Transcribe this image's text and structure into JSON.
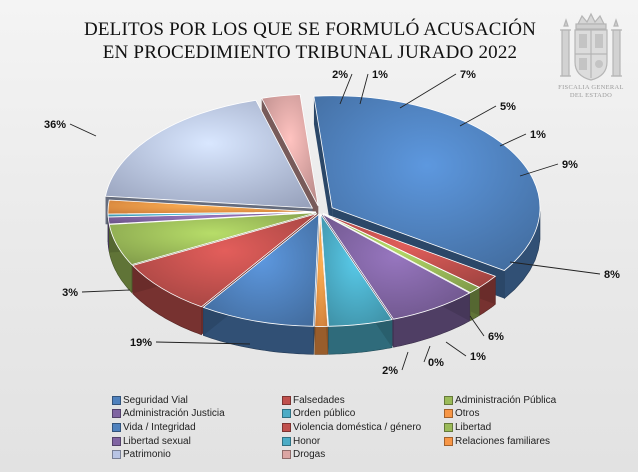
{
  "title": {
    "line1": "DELITOS POR LOS QUE SE FORMULÓ ACUSACIÓN",
    "line2": "EN PROCEDIMIENTO TRIBUNAL JURADO 2022"
  },
  "emblem": {
    "icon": "coat-of-arms-icon",
    "text_line1": "FISCALIA GENERAL",
    "text_line2": "DEL ESTADO"
  },
  "chart_data": {
    "type": "pie",
    "title": "DELITOS POR LOS QUE SE FORMULÓ ACUSACIÓN EN PROCEDIMIENTO TRIBUNAL JURADO 2022",
    "style": "3d-exploded",
    "legend_position": "bottom",
    "slices": [
      {
        "label": "Seguridad Vial",
        "value": 36,
        "display": "36%",
        "color": "#4f81bd"
      },
      {
        "label": "Falsedades",
        "value": 2,
        "display": "2%",
        "color": "#c0504d"
      },
      {
        "label": "Administración Pública",
        "value": 1,
        "display": "1%",
        "color": "#9bbb59"
      },
      {
        "label": "Administración Justicia",
        "value": 7,
        "display": "7%",
        "color": "#8064a2"
      },
      {
        "label": "Orden público",
        "value": 5,
        "display": "5%",
        "color": "#4bacc6"
      },
      {
        "label": "Otros",
        "value": 1,
        "display": "1%",
        "color": "#f79646"
      },
      {
        "label": "Vida / Integridad",
        "value": 9,
        "display": "9%",
        "color": "#4f81bd"
      },
      {
        "label": "Violencia doméstica / género",
        "value": 8,
        "display": "8%",
        "color": "#c0504d"
      },
      {
        "label": "Libertad",
        "value": 6,
        "display": "6%",
        "color": "#9bbb59"
      },
      {
        "label": "Libertad sexual",
        "value": 1,
        "display": "1%",
        "color": "#8064a2"
      },
      {
        "label": "Honor",
        "value": 0.4,
        "display": "0%",
        "color": "#4bacc6"
      },
      {
        "label": "Relaciones familiares",
        "value": 2,
        "display": "2%",
        "color": "#f79646"
      },
      {
        "label": "Patrimonio",
        "value": 19,
        "display": "19%",
        "color": "#b8c4e4"
      },
      {
        "label": "Drogas",
        "value": 3,
        "display": "3%",
        "color": "#dba5a3"
      }
    ]
  }
}
